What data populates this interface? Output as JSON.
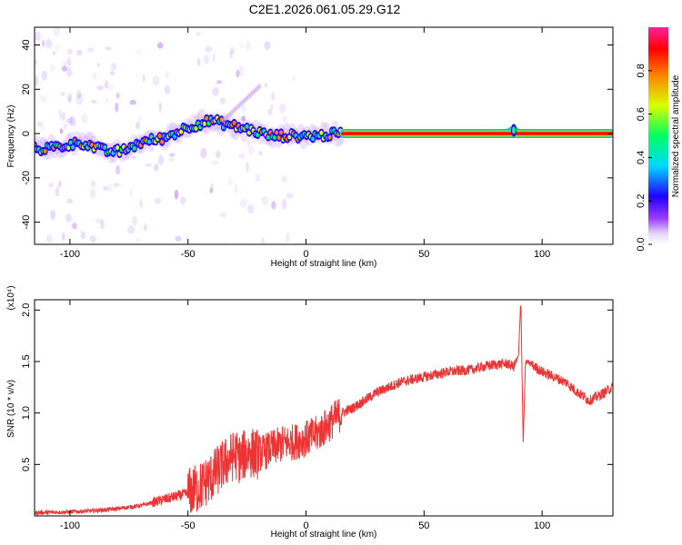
{
  "title": "C2E1.2026.061.05.29.G12",
  "chart_data": [
    {
      "type": "heatmap",
      "xlabel": "Height of straight line (km)",
      "ylabel": "Frequency (Hz)",
      "xlim": [
        -115,
        130
      ],
      "ylim": [
        -50,
        48
      ],
      "xticks": [
        -100,
        -50,
        0,
        50,
        100
      ],
      "yticks": [
        -40,
        -20,
        0,
        20,
        40
      ],
      "colorbar": {
        "label": "Normalized spectral amplitude",
        "range": [
          0,
          1
        ],
        "ticks": [
          "0.0",
          "0.2",
          "0.4",
          "0.6",
          "0.8"
        ],
        "colormap": [
          "#ffffff",
          "#e6d4fa",
          "#9a3cff",
          "#2000ff",
          "#00d8ff",
          "#00ff60",
          "#d8ff00",
          "#ff8000",
          "#ff0000",
          "#ff20a0"
        ]
      },
      "ridge": [
        {
          "x": -113,
          "y": -7
        },
        {
          "x": -105,
          "y": -6
        },
        {
          "x": -95,
          "y": -4
        },
        {
          "x": -85,
          "y": -8
        },
        {
          "x": -78,
          "y": -8
        },
        {
          "x": -70,
          "y": -4
        },
        {
          "x": -60,
          "y": -2
        },
        {
          "x": -50,
          "y": 3
        },
        {
          "x": -40,
          "y": 6
        },
        {
          "x": -33,
          "y": 4
        },
        {
          "x": -25,
          "y": 2
        },
        {
          "x": -15,
          "y": -1
        },
        {
          "x": -5,
          "y": -1
        },
        {
          "x": 5,
          "y": -1
        },
        {
          "x": 15,
          "y": 0
        },
        {
          "x": 30,
          "y": 0
        },
        {
          "x": 60,
          "y": 0
        },
        {
          "x": 85,
          "y": 0
        },
        {
          "x": 88,
          "y": 2
        },
        {
          "x": 90,
          "y": 0
        },
        {
          "x": 130,
          "y": 0
        }
      ],
      "strong_from_x": 15
    },
    {
      "type": "line",
      "xlabel": "Height of straight line (km)",
      "ylabel": "SNR (10 * v/v)",
      "y_multiplier": "(x10⁴)",
      "xlim": [
        -115,
        130
      ],
      "ylim": [
        0,
        2.1
      ],
      "xticks": [
        -100,
        -50,
        0,
        50,
        100
      ],
      "yticks": [
        "0.5",
        "1.0",
        "1.5",
        "2.0"
      ],
      "color": "#ee3333",
      "x": [
        -115,
        -100,
        -90,
        -80,
        -70,
        -60,
        -50,
        -45,
        -40,
        -35,
        -30,
        -28,
        -25,
        -20,
        -15,
        -10,
        -5,
        0,
        5,
        10,
        15,
        20,
        30,
        40,
        50,
        60,
        70,
        75,
        80,
        85,
        88,
        90,
        91,
        92,
        93,
        95,
        100,
        110,
        115,
        120,
        125,
        130
      ],
      "values": [
        0.03,
        0.04,
        0.05,
        0.07,
        0.1,
        0.16,
        0.22,
        0.28,
        0.38,
        0.5,
        0.6,
        0.55,
        0.62,
        0.6,
        0.65,
        0.7,
        0.72,
        0.75,
        0.8,
        0.9,
        1.0,
        1.05,
        1.2,
        1.3,
        1.35,
        1.4,
        1.42,
        1.45,
        1.47,
        1.48,
        1.45,
        1.55,
        2.1,
        0.72,
        1.5,
        1.48,
        1.4,
        1.3,
        1.2,
        1.12,
        1.18,
        1.25
      ]
    }
  ]
}
